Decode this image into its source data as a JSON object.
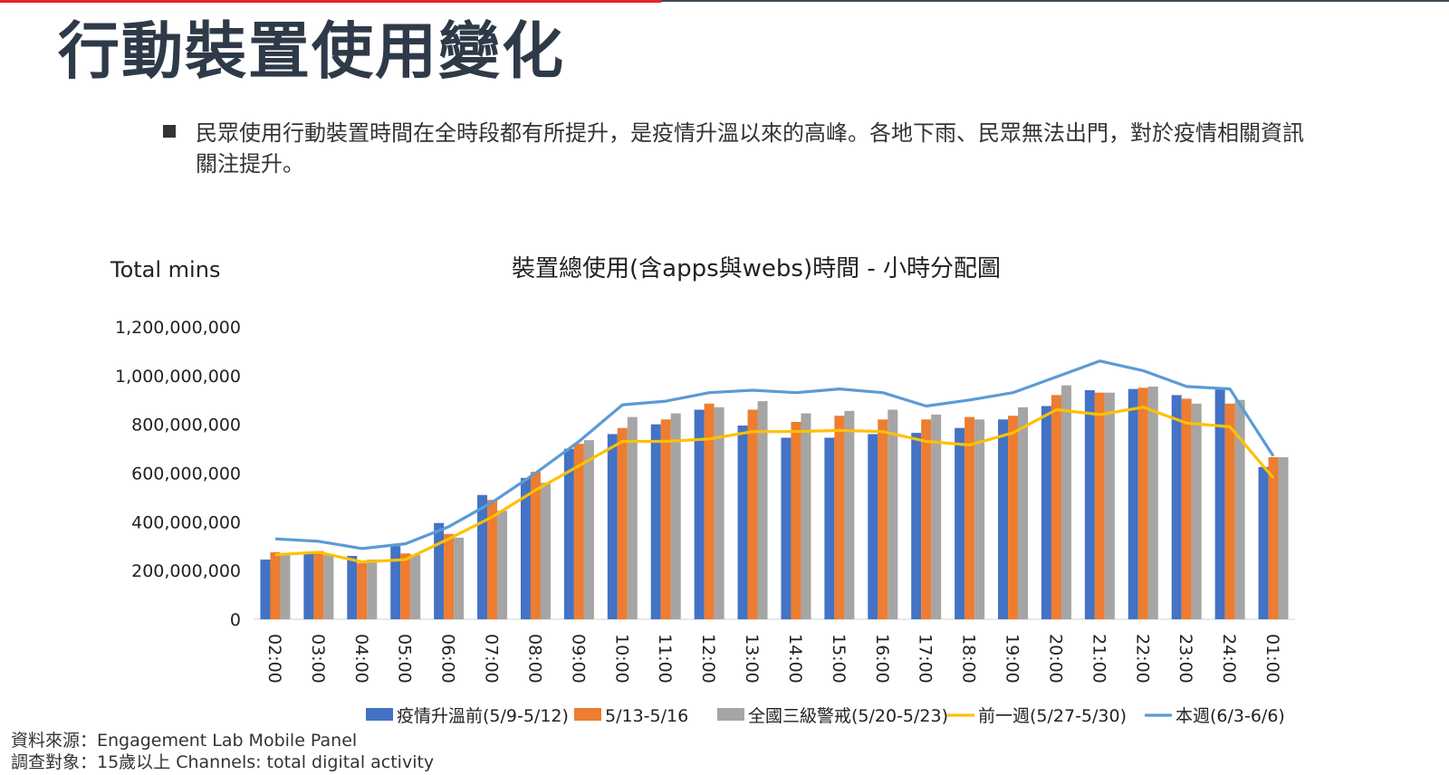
{
  "page": {
    "title": "行動裝置使用變化",
    "bullet": "民眾使用行動裝置時間在全時段都有所提升，是疫情升溫以來的高峰。各地下雨、民眾無法出門，對於疫情相關資訊關注提升。",
    "source_note": "資料來源：Engagement Lab Mobile Panel",
    "audience_note": "調查對象：15歲以上  Channels: total digital activity"
  },
  "colors": {
    "title": "#2e3a48",
    "accent_red": "#e3262a",
    "bar_blue": "#4472c4",
    "bar_orange": "#ed7d31",
    "bar_gray": "#a5a5a5",
    "line_yellow": "#ffc000",
    "line_blue": "#5b9bd5"
  },
  "chart_data": {
    "type": "bar",
    "title": "裝置總使用(含apps與webs)時間 - 小時分配圖",
    "ylabel": "Total mins",
    "xlabel": "",
    "ylim": [
      0,
      1200000000
    ],
    "yticks": [
      0,
      200000000,
      400000000,
      600000000,
      800000000,
      1000000000,
      1200000000
    ],
    "ytick_labels": [
      "0",
      "200,000,000",
      "400,000,000",
      "600,000,000",
      "800,000,000",
      "1,000,000,000",
      "1,200,000,000"
    ],
    "grid": false,
    "legend_position": "bottom",
    "categories": [
      "02:00",
      "03:00",
      "04:00",
      "05:00",
      "06:00",
      "07:00",
      "08:00",
      "09:00",
      "10:00",
      "11:00",
      "12:00",
      "13:00",
      "14:00",
      "15:00",
      "16:00",
      "17:00",
      "18:00",
      "19:00",
      "20:00",
      "21:00",
      "22:00",
      "23:00",
      "24:00",
      "01:00"
    ],
    "series": [
      {
        "name": "疫情升溫前(5/9-5/12)",
        "type": "bar",
        "color": "#4472c4",
        "values": [
          245000000,
          270000000,
          260000000,
          300000000,
          395000000,
          510000000,
          580000000,
          700000000,
          760000000,
          800000000,
          860000000,
          795000000,
          745000000,
          745000000,
          760000000,
          765000000,
          785000000,
          820000000,
          875000000,
          940000000,
          945000000,
          920000000,
          945000000,
          625000000
        ]
      },
      {
        "name": "5/13-5/16",
        "type": "bar",
        "color": "#ed7d31",
        "values": [
          275000000,
          280000000,
          230000000,
          270000000,
          350000000,
          490000000,
          605000000,
          720000000,
          785000000,
          820000000,
          885000000,
          860000000,
          810000000,
          835000000,
          820000000,
          820000000,
          830000000,
          835000000,
          920000000,
          930000000,
          950000000,
          905000000,
          885000000,
          665000000
        ]
      },
      {
        "name": "全國三級警戒(5/20-5/23)",
        "type": "bar",
        "color": "#a5a5a5",
        "values": [
          270000000,
          265000000,
          245000000,
          265000000,
          335000000,
          445000000,
          560000000,
          735000000,
          830000000,
          845000000,
          870000000,
          895000000,
          845000000,
          855000000,
          860000000,
          840000000,
          820000000,
          870000000,
          960000000,
          930000000,
          955000000,
          885000000,
          900000000,
          665000000
        ]
      },
      {
        "name": "前一週(5/27-5/30)",
        "type": "line",
        "color": "#ffc000",
        "values": [
          265000000,
          275000000,
          235000000,
          245000000,
          330000000,
          420000000,
          530000000,
          630000000,
          730000000,
          730000000,
          740000000,
          770000000,
          770000000,
          775000000,
          770000000,
          730000000,
          715000000,
          765000000,
          860000000,
          840000000,
          870000000,
          805000000,
          790000000,
          580000000
        ]
      },
      {
        "name": "本週(6/3-6/6)",
        "type": "line",
        "color": "#5b9bd5",
        "values": [
          330000000,
          320000000,
          290000000,
          310000000,
          380000000,
          480000000,
          600000000,
          730000000,
          880000000,
          895000000,
          930000000,
          940000000,
          930000000,
          945000000,
          930000000,
          875000000,
          900000000,
          930000000,
          995000000,
          1060000000,
          1020000000,
          955000000,
          945000000,
          670000000
        ]
      }
    ]
  }
}
